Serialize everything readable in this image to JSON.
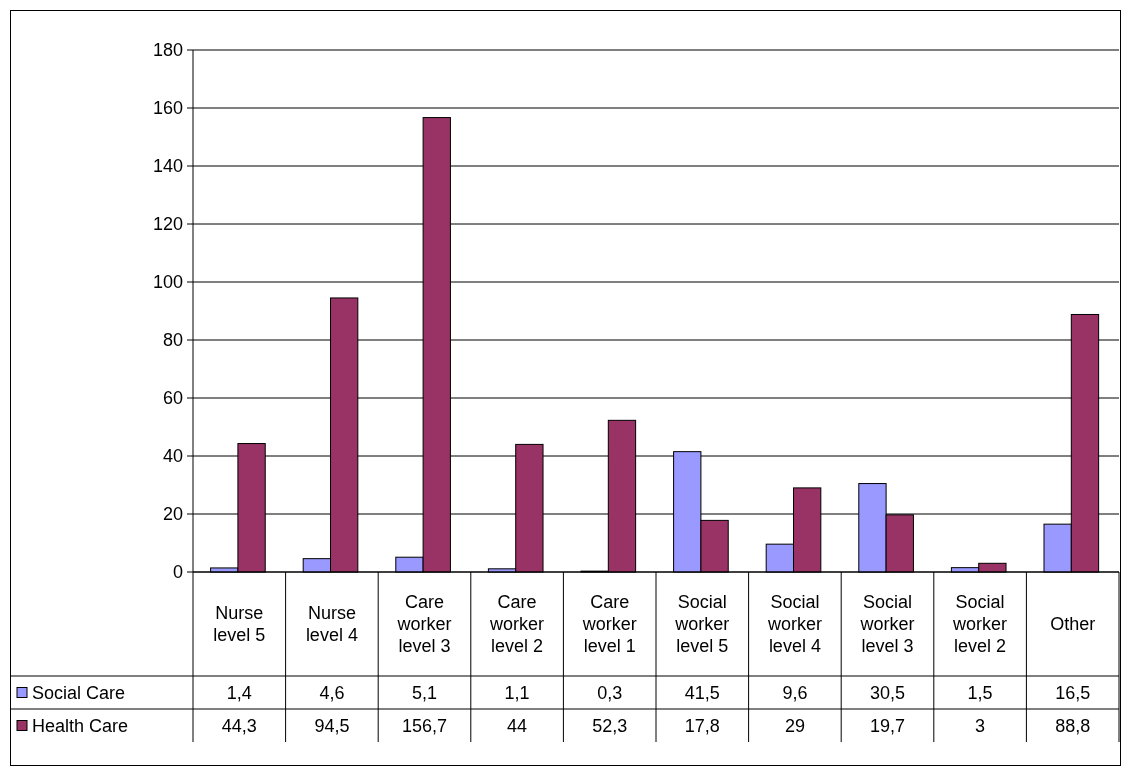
{
  "chart_data": {
    "type": "bar",
    "categories": [
      "Nurse level 5",
      "Nurse level 4",
      "Care worker level 3",
      "Care worker level 2",
      "Care worker level 1",
      "Social worker level 5",
      "Social worker level 4",
      "Social worker level 3",
      "Social worker level 2",
      "Other"
    ],
    "series": [
      {
        "name": "Social Care",
        "color": "#9999ff",
        "values": [
          1.4,
          4.6,
          5.1,
          1.1,
          0.3,
          41.5,
          9.6,
          30.5,
          1.5,
          16.5
        ],
        "value_labels": [
          "1,4",
          "4,6",
          "5,1",
          "1,1",
          "0,3",
          "41,5",
          "9,6",
          "30,5",
          "1,5",
          "16,5"
        ]
      },
      {
        "name": "Health Care",
        "color": "#993366",
        "values": [
          44.3,
          94.5,
          156.7,
          44,
          52.3,
          17.8,
          29,
          19.7,
          3,
          88.8
        ],
        "value_labels": [
          "44,3",
          "94,5",
          "156,7",
          "44",
          "52,3",
          "17,8",
          "29",
          "19,7",
          "3",
          "88,8"
        ]
      }
    ],
    "ylim": [
      0,
      180
    ],
    "yticks": [
      0,
      20,
      40,
      60,
      80,
      100,
      120,
      140,
      160,
      180
    ],
    "grid": "y",
    "legend": "bottom"
  }
}
